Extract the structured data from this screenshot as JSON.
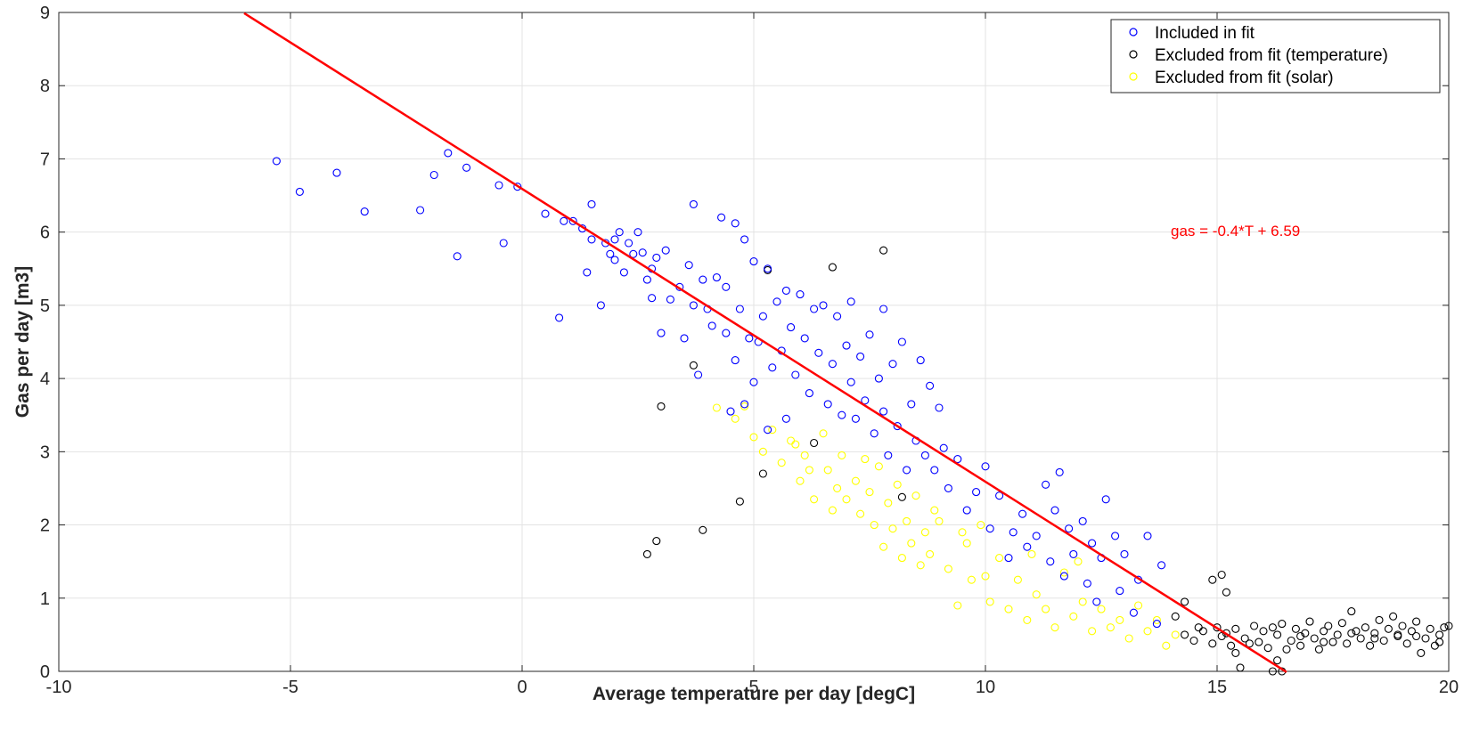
{
  "chart_data": {
    "type": "scatter",
    "xlabel": "Average temperature per day [degC]",
    "ylabel": "Gas per day [m3]",
    "xlim": [
      -10,
      20
    ],
    "ylim": [
      0,
      9
    ],
    "xticks": [
      -10,
      -5,
      0,
      5,
      10,
      15,
      20
    ],
    "yticks": [
      0,
      1,
      2,
      3,
      4,
      5,
      6,
      7,
      8,
      9
    ],
    "grid": true,
    "legend_position": "top-right",
    "colors": {
      "included": "#0000ff",
      "temperature": "#000000",
      "solar": "#ffff00",
      "fit": "#ff0000"
    },
    "legend": [
      {
        "label": "Included in fit",
        "color": "#0000ff"
      },
      {
        "label": "Excluded from fit (temperature)",
        "color": "#000000"
      },
      {
        "label": "Excluded from fit (solar)",
        "color": "#ffff00"
      }
    ],
    "fit_line": {
      "slope": -0.4,
      "intercept": 6.59,
      "x_range": [
        -6,
        16.5
      ]
    },
    "annotation": {
      "text": "gas = -0.4*T + 6.59",
      "x": 14,
      "y": 5.95
    },
    "series": [
      {
        "key": "included",
        "points": [
          [
            -5.3,
            6.97
          ],
          [
            -4.8,
            6.55
          ],
          [
            -4.0,
            6.81
          ],
          [
            -3.4,
            6.28
          ],
          [
            -2.2,
            6.3
          ],
          [
            -1.9,
            6.78
          ],
          [
            -1.6,
            7.08
          ],
          [
            -1.4,
            5.67
          ],
          [
            -1.2,
            6.88
          ],
          [
            -0.5,
            6.64
          ],
          [
            -0.4,
            5.85
          ],
          [
            -0.1,
            6.62
          ],
          [
            0.5,
            6.25
          ],
          [
            0.8,
            4.83
          ],
          [
            0.9,
            6.15
          ],
          [
            1.1,
            6.15
          ],
          [
            1.3,
            6.05
          ],
          [
            1.4,
            5.45
          ],
          [
            1.5,
            6.38
          ],
          [
            1.5,
            5.9
          ],
          [
            1.7,
            5.0
          ],
          [
            1.8,
            5.85
          ],
          [
            1.9,
            5.7
          ],
          [
            2.0,
            5.9
          ],
          [
            2.0,
            5.62
          ],
          [
            2.1,
            6.0
          ],
          [
            2.2,
            5.45
          ],
          [
            2.3,
            5.85
          ],
          [
            2.4,
            5.7
          ],
          [
            2.5,
            6.0
          ],
          [
            2.6,
            5.72
          ],
          [
            2.7,
            5.35
          ],
          [
            2.8,
            5.5
          ],
          [
            2.8,
            5.1
          ],
          [
            2.9,
            5.65
          ],
          [
            3.0,
            4.62
          ],
          [
            3.1,
            5.75
          ],
          [
            3.2,
            5.08
          ],
          [
            3.4,
            5.25
          ],
          [
            3.5,
            4.55
          ],
          [
            3.6,
            5.55
          ],
          [
            3.7,
            5.0
          ],
          [
            3.7,
            6.38
          ],
          [
            3.8,
            4.05
          ],
          [
            3.9,
            5.35
          ],
          [
            4.0,
            4.95
          ],
          [
            4.1,
            4.72
          ],
          [
            4.2,
            5.38
          ],
          [
            4.3,
            6.2
          ],
          [
            4.4,
            4.62
          ],
          [
            4.4,
            5.25
          ],
          [
            4.5,
            3.55
          ],
          [
            4.6,
            6.12
          ],
          [
            4.6,
            4.25
          ],
          [
            4.7,
            4.95
          ],
          [
            4.8,
            3.65
          ],
          [
            4.8,
            5.9
          ],
          [
            4.9,
            4.55
          ],
          [
            5.0,
            3.95
          ],
          [
            5.0,
            5.6
          ],
          [
            5.1,
            4.5
          ],
          [
            5.2,
            4.85
          ],
          [
            5.3,
            3.3
          ],
          [
            5.3,
            5.5
          ],
          [
            5.4,
            4.15
          ],
          [
            5.5,
            5.05
          ],
          [
            5.6,
            4.38
          ],
          [
            5.7,
            3.45
          ],
          [
            5.7,
            5.2
          ],
          [
            5.8,
            4.7
          ],
          [
            5.9,
            4.05
          ],
          [
            6.0,
            5.15
          ],
          [
            6.1,
            4.55
          ],
          [
            6.2,
            3.8
          ],
          [
            6.3,
            4.95
          ],
          [
            6.4,
            4.35
          ],
          [
            6.5,
            5.0
          ],
          [
            6.6,
            3.65
          ],
          [
            6.7,
            4.2
          ],
          [
            6.8,
            4.85
          ],
          [
            6.9,
            3.5
          ],
          [
            7.0,
            4.45
          ],
          [
            7.1,
            5.05
          ],
          [
            7.1,
            3.95
          ],
          [
            7.2,
            3.45
          ],
          [
            7.3,
            4.3
          ],
          [
            7.4,
            3.7
          ],
          [
            7.5,
            4.6
          ],
          [
            7.6,
            3.25
          ],
          [
            7.7,
            4.0
          ],
          [
            7.8,
            3.55
          ],
          [
            7.8,
            4.95
          ],
          [
            7.9,
            2.95
          ],
          [
            8.0,
            4.2
          ],
          [
            8.1,
            3.35
          ],
          [
            8.2,
            4.5
          ],
          [
            8.3,
            2.75
          ],
          [
            8.4,
            3.65
          ],
          [
            8.5,
            3.15
          ],
          [
            8.6,
            4.25
          ],
          [
            8.7,
            2.95
          ],
          [
            8.8,
            3.9
          ],
          [
            8.9,
            2.75
          ],
          [
            9.0,
            3.6
          ],
          [
            9.1,
            3.05
          ],
          [
            9.2,
            2.5
          ],
          [
            9.4,
            2.9
          ],
          [
            9.6,
            2.2
          ],
          [
            9.8,
            2.45
          ],
          [
            10.0,
            2.8
          ],
          [
            10.1,
            1.95
          ],
          [
            10.3,
            2.4
          ],
          [
            10.5,
            1.55
          ],
          [
            10.6,
            1.9
          ],
          [
            10.8,
            2.15
          ],
          [
            10.9,
            1.7
          ],
          [
            11.1,
            1.85
          ],
          [
            11.3,
            2.55
          ],
          [
            11.4,
            1.5
          ],
          [
            11.5,
            2.2
          ],
          [
            11.6,
            2.72
          ],
          [
            11.7,
            1.3
          ],
          [
            11.8,
            1.95
          ],
          [
            11.9,
            1.6
          ],
          [
            12.1,
            2.05
          ],
          [
            12.2,
            1.2
          ],
          [
            12.3,
            1.75
          ],
          [
            12.4,
            0.95
          ],
          [
            12.5,
            1.55
          ],
          [
            12.6,
            2.35
          ],
          [
            12.8,
            1.85
          ],
          [
            12.9,
            1.1
          ],
          [
            13.0,
            1.6
          ],
          [
            13.2,
            0.8
          ],
          [
            13.3,
            1.25
          ],
          [
            13.5,
            1.85
          ],
          [
            13.7,
            0.65
          ],
          [
            13.8,
            1.45
          ]
        ]
      },
      {
        "key": "temperature",
        "points": [
          [
            2.7,
            1.6
          ],
          [
            2.9,
            1.78
          ],
          [
            3.0,
            3.62
          ],
          [
            3.7,
            4.18
          ],
          [
            3.9,
            1.93
          ],
          [
            4.7,
            2.32
          ],
          [
            5.2,
            2.7
          ],
          [
            5.3,
            5.48
          ],
          [
            6.3,
            3.12
          ],
          [
            6.7,
            5.52
          ],
          [
            7.8,
            5.75
          ],
          [
            8.2,
            2.38
          ],
          [
            14.1,
            0.75
          ],
          [
            14.3,
            0.95
          ],
          [
            14.6,
            0.6
          ],
          [
            14.9,
            1.25
          ],
          [
            15.1,
            1.32
          ],
          [
            15.2,
            1.08
          ],
          [
            15.4,
            0.25
          ],
          [
            15.5,
            0.05
          ],
          [
            16.2,
            0.0
          ],
          [
            16.3,
            0.15
          ],
          [
            16.4,
            0.0
          ],
          [
            16.5,
            0.3
          ],
          [
            14.3,
            0.5
          ],
          [
            14.5,
            0.42
          ],
          [
            14.7,
            0.55
          ],
          [
            14.9,
            0.38
          ],
          [
            15.0,
            0.6
          ],
          [
            15.1,
            0.48
          ],
          [
            15.3,
            0.35
          ],
          [
            15.4,
            0.58
          ],
          [
            15.6,
            0.45
          ],
          [
            15.8,
            0.62
          ],
          [
            15.9,
            0.4
          ],
          [
            16.0,
            0.55
          ],
          [
            16.1,
            0.32
          ],
          [
            16.3,
            0.5
          ],
          [
            16.4,
            0.65
          ],
          [
            16.6,
            0.42
          ],
          [
            16.7,
            0.58
          ],
          [
            16.8,
            0.35
          ],
          [
            16.9,
            0.52
          ],
          [
            17.0,
            0.68
          ],
          [
            17.1,
            0.45
          ],
          [
            17.2,
            0.3
          ],
          [
            17.3,
            0.55
          ],
          [
            17.4,
            0.62
          ],
          [
            17.5,
            0.4
          ],
          [
            17.6,
            0.5
          ],
          [
            17.7,
            0.66
          ],
          [
            17.8,
            0.38
          ],
          [
            17.9,
            0.82
          ],
          [
            18.0,
            0.55
          ],
          [
            18.1,
            0.45
          ],
          [
            18.2,
            0.6
          ],
          [
            18.3,
            0.35
          ],
          [
            18.4,
            0.52
          ],
          [
            18.5,
            0.7
          ],
          [
            18.6,
            0.42
          ],
          [
            18.7,
            0.58
          ],
          [
            18.8,
            0.75
          ],
          [
            18.9,
            0.48
          ],
          [
            19.0,
            0.62
          ],
          [
            19.1,
            0.38
          ],
          [
            19.2,
            0.55
          ],
          [
            19.3,
            0.68
          ],
          [
            19.4,
            0.25
          ],
          [
            19.5,
            0.45
          ],
          [
            19.6,
            0.58
          ],
          [
            19.7,
            0.35
          ],
          [
            19.8,
            0.5
          ],
          [
            19.9,
            0.6
          ],
          [
            20.0,
            0.62
          ],
          [
            15.2,
            0.52
          ],
          [
            15.7,
            0.38
          ],
          [
            16.2,
            0.6
          ],
          [
            16.8,
            0.48
          ],
          [
            17.3,
            0.4
          ],
          [
            17.9,
            0.52
          ],
          [
            18.4,
            0.45
          ],
          [
            18.9,
            0.5
          ],
          [
            19.3,
            0.48
          ],
          [
            19.8,
            0.4
          ]
        ]
      },
      {
        "key": "solar",
        "points": [
          [
            4.2,
            3.6
          ],
          [
            4.6,
            3.45
          ],
          [
            4.8,
            3.62
          ],
          [
            5.0,
            3.2
          ],
          [
            5.2,
            3.0
          ],
          [
            5.4,
            3.3
          ],
          [
            5.6,
            2.85
          ],
          [
            5.8,
            3.15
          ],
          [
            6.0,
            2.6
          ],
          [
            6.1,
            2.95
          ],
          [
            6.3,
            2.35
          ],
          [
            6.5,
            3.25
          ],
          [
            6.6,
            2.75
          ],
          [
            6.8,
            2.5
          ],
          [
            6.9,
            2.95
          ],
          [
            7.0,
            2.35
          ],
          [
            7.2,
            2.6
          ],
          [
            7.3,
            2.15
          ],
          [
            7.5,
            2.45
          ],
          [
            7.6,
            2.0
          ],
          [
            7.7,
            2.8
          ],
          [
            7.8,
            1.7
          ],
          [
            7.9,
            2.3
          ],
          [
            8.0,
            1.95
          ],
          [
            8.1,
            2.55
          ],
          [
            8.2,
            1.55
          ],
          [
            8.3,
            2.05
          ],
          [
            8.4,
            1.75
          ],
          [
            8.5,
            2.4
          ],
          [
            8.6,
            1.45
          ],
          [
            8.7,
            1.9
          ],
          [
            8.8,
            1.6
          ],
          [
            9.0,
            2.05
          ],
          [
            9.2,
            1.4
          ],
          [
            9.4,
            0.9
          ],
          [
            9.6,
            1.75
          ],
          [
            9.7,
            1.25
          ],
          [
            9.9,
            2.0
          ],
          [
            10.1,
            0.95
          ],
          [
            10.3,
            1.55
          ],
          [
            10.5,
            0.85
          ],
          [
            10.7,
            1.25
          ],
          [
            10.9,
            0.7
          ],
          [
            11.1,
            1.05
          ],
          [
            11.3,
            0.85
          ],
          [
            11.5,
            0.6
          ],
          [
            11.7,
            1.35
          ],
          [
            11.9,
            0.75
          ],
          [
            12.1,
            0.95
          ],
          [
            12.3,
            0.55
          ],
          [
            12.5,
            0.85
          ],
          [
            12.7,
            0.6
          ],
          [
            12.9,
            0.7
          ],
          [
            13.1,
            0.45
          ],
          [
            13.3,
            0.9
          ],
          [
            13.5,
            0.55
          ],
          [
            13.7,
            0.7
          ],
          [
            13.9,
            0.35
          ],
          [
            14.1,
            0.5
          ],
          [
            12.0,
            1.5
          ],
          [
            11.0,
            1.6
          ],
          [
            10.0,
            1.3
          ],
          [
            9.5,
            1.9
          ],
          [
            8.9,
            2.2
          ],
          [
            7.4,
            2.9
          ],
          [
            6.7,
            2.2
          ],
          [
            6.2,
            2.75
          ],
          [
            5.9,
            3.1
          ]
        ]
      }
    ]
  }
}
